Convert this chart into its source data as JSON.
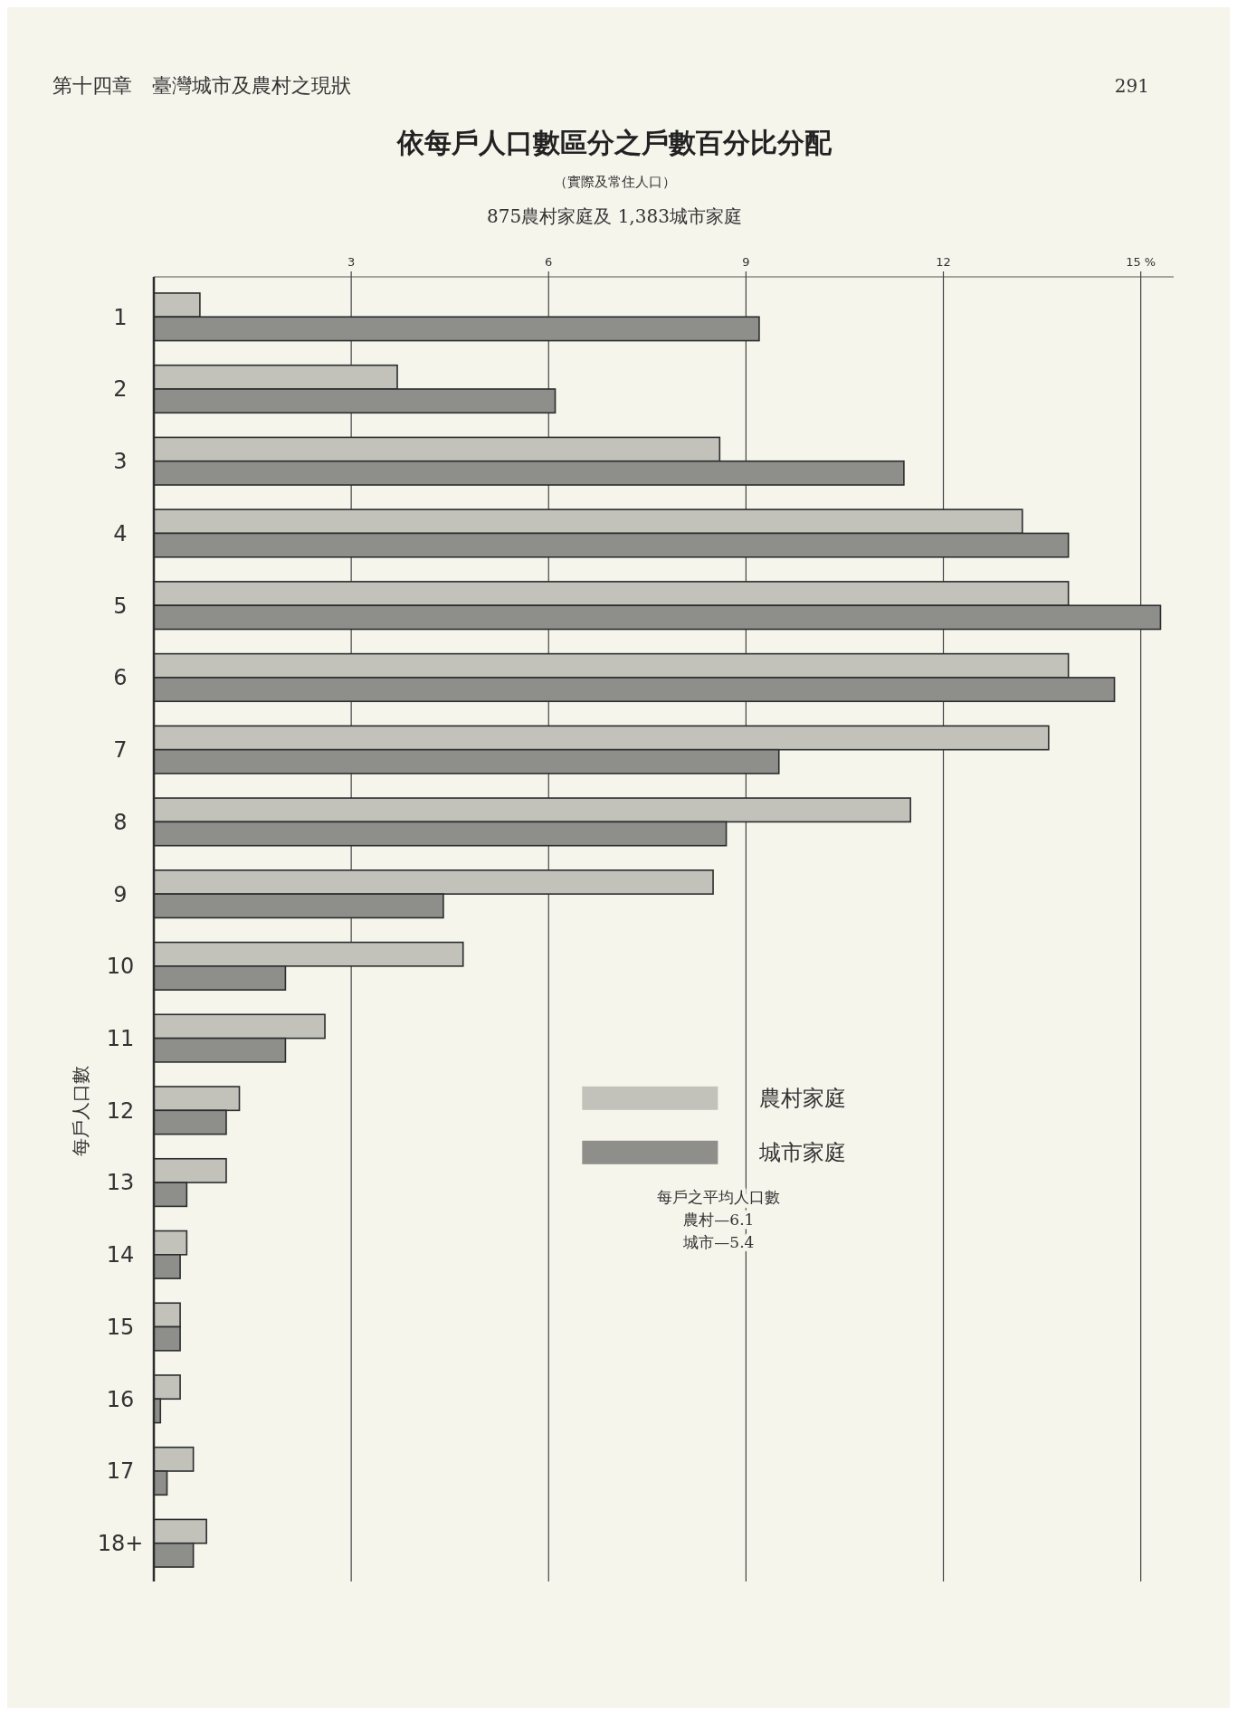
{
  "chart_data": {
    "type": "bar",
    "orientation": "horizontal",
    "title": "依每戶人口數區分之戶數百分比分配",
    "subtitle": "（實際及常住人口）\n875農村家庭及 1,383城市家庭",
    "ylabel": "每戶人口數",
    "categories": [
      "1",
      "2",
      "3",
      "4",
      "5",
      "6",
      "7",
      "8",
      "9",
      "10",
      "11",
      "12",
      "13",
      "14",
      "15",
      "16",
      "17",
      "18+"
    ],
    "series": [
      {
        "name": "農村家庭",
        "color": "#c2c2ba",
        "values": [
          0.7,
          3.7,
          8.6,
          13.2,
          13.9,
          13.9,
          13.6,
          11.5,
          8.5,
          4.7,
          2.6,
          1.3,
          1.1,
          0.5,
          0.4,
          0.4,
          0.6,
          0.8
        ]
      },
      {
        "name": "城市家庭",
        "color": "#8e8e8a",
        "values": [
          9.2,
          6.1,
          11.4,
          13.9,
          15.3,
          14.6,
          9.5,
          8.7,
          4.4,
          2.0,
          2.0,
          1.1,
          0.5,
          0.4,
          0.4,
          0.1,
          0.2,
          0.6
        ]
      }
    ],
    "xlim": [
      0,
      15.5
    ],
    "xticks": [
      3,
      6,
      9,
      12,
      {
        "value": 15,
        "label": "15 %"
      }
    ],
    "grid": "x",
    "legend": "center",
    "annotations": [
      "第十四章　臺灣城市及農村之現狀",
      "291",
      "每戶之平均人口數",
      "農村—6.1",
      "城市—5.4"
    ]
  }
}
